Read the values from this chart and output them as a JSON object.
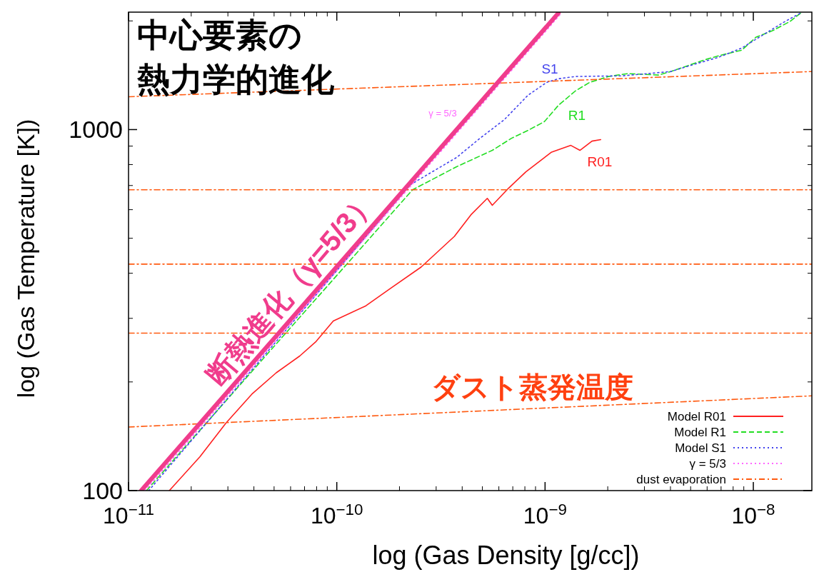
{
  "chart_data": {
    "type": "line",
    "title": "中心要素の熱力学的進化",
    "xlabel": "log (Gas Density [g/cc])",
    "ylabel": "log (Gas Temperature [K])",
    "log": "xy",
    "grid": false,
    "legend": "bottom right",
    "marker": "none",
    "xlim": [
      1e-11,
      1.91e-08
    ],
    "ylim": [
      100,
      2115
    ],
    "xticks": [
      {
        "value": 1e-11,
        "label": "10$^{−11}$"
      },
      {
        "value": 1e-10,
        "label": "10$^{−10}$"
      },
      {
        "value": 1e-09,
        "label": "10$^{−9}$"
      },
      {
        "value": 1e-08,
        "label": "10$^{−8}$"
      }
    ],
    "yticks": [
      100,
      1000
    ],
    "series": [
      {
        "name": "Model R01",
        "color": "#ff2020",
        "line_style": "solid",
        "x": [
          1.57e-11,
          2.2e-11,
          2.94e-11,
          3.91e-11,
          5.12e-11,
          6.64e-11,
          7.96e-11,
          9.62e-11,
          1.38e-10,
          1.81e-10,
          2.54e-10,
          3.67e-10,
          4.41e-10,
          5.28e-10,
          5.58e-10,
          6.68e-10,
          8.09e-10,
          1.07e-09,
          1.33e-09,
          1.47e-09,
          1.68e-09,
          1.85e-09
        ],
        "values": [
          100,
          124,
          154,
          185,
          212,
          236,
          259,
          295,
          325,
          363,
          416,
          506,
          581,
          645,
          617,
          688,
          764,
          865,
          904,
          876,
          929,
          938
        ]
      },
      {
        "name": "Model R1",
        "color": "#22dd22",
        "line_style": "dashed",
        "x": [
          1.22e-11,
          2.31e-10,
          3.76e-10,
          5.58e-10,
          6.9e-10,
          8.28e-10,
          9.93e-10,
          1.16e-09,
          1.4e-09,
          1.64e-09,
          2.02e-09,
          2.49e-09,
          3.51e-09,
          4.01e-09,
          5.94e-09,
          6.79e-09,
          8.81e-09,
          1.03e-08,
          1.24e-08,
          1.5e-08,
          1.69e-08
        ],
        "values": [
          100,
          681,
          789,
          876,
          946,
          995,
          1052,
          1168,
          1280,
          1352,
          1403,
          1429,
          1416,
          1448,
          1565,
          1600,
          1660,
          1803,
          1880,
          1993,
          2104
        ]
      },
      {
        "name": "Model S1",
        "color": "#4444ee",
        "line_style": "dotted",
        "x": [
          1.25e-11,
          2.25e-10,
          3.76e-10,
          4.87e-10,
          6.38e-10,
          8.28e-10,
          1.02e-09,
          1.16e-09,
          1.4e-09,
          2.36e-09,
          4.01e-09,
          5.2e-09,
          6.79e-09,
          8.81e-09,
          1.14e-08,
          1.42e-08,
          1.69e-08
        ],
        "values": [
          100,
          703,
          837,
          946,
          1066,
          1245,
          1352,
          1383,
          1403,
          1409,
          1448,
          1516,
          1585,
          1683,
          1845,
          1993,
          2104
        ]
      },
      {
        "name": "γ = 5/3",
        "color": "#ff66ff",
        "line_style": "dotted",
        "x": [
          1.2e-11,
          1.2e-09
        ],
        "values": [
          100,
          2104
        ]
      },
      {
        "name": "dust evaporation",
        "color": "#ff5a10",
        "line_style": "dashdot",
        "x": [
          1e-11,
          1.91e-08
        ],
        "values": [
          1233,
          1448
        ]
      },
      {
        "color": "#ff5a10",
        "line_style": "dashdot",
        "x": [
          1e-11,
          1.91e-08
        ],
        "values": [
          681,
          681
        ]
      },
      {
        "color": "#ff5a10",
        "line_style": "dashdot",
        "x": [
          1e-11,
          1.91e-08
        ],
        "values": [
          424,
          424
        ]
      },
      {
        "color": "#ff5a10",
        "line_style": "dashdot",
        "x": [
          1e-11,
          1.91e-08
        ],
        "values": [
          273,
          273
        ]
      },
      {
        "color": "#ff5a10",
        "line_style": "dashdot",
        "x": [
          1e-11,
          1.91e-08
        ],
        "values": [
          150,
          183
        ]
      },
      {
        "color": "#f03c8c",
        "line_style": "solid",
        "x": [
          1.15e-11,
          1.16e-09
        ],
        "values": [
          100,
          2104
        ]
      }
    ],
    "annotations": [
      "S1",
      "R1",
      "R01",
      "γ = 5/3",
      "断熱進化（γ=5/3）",
      "ダスト蒸発温度"
    ]
  }
}
